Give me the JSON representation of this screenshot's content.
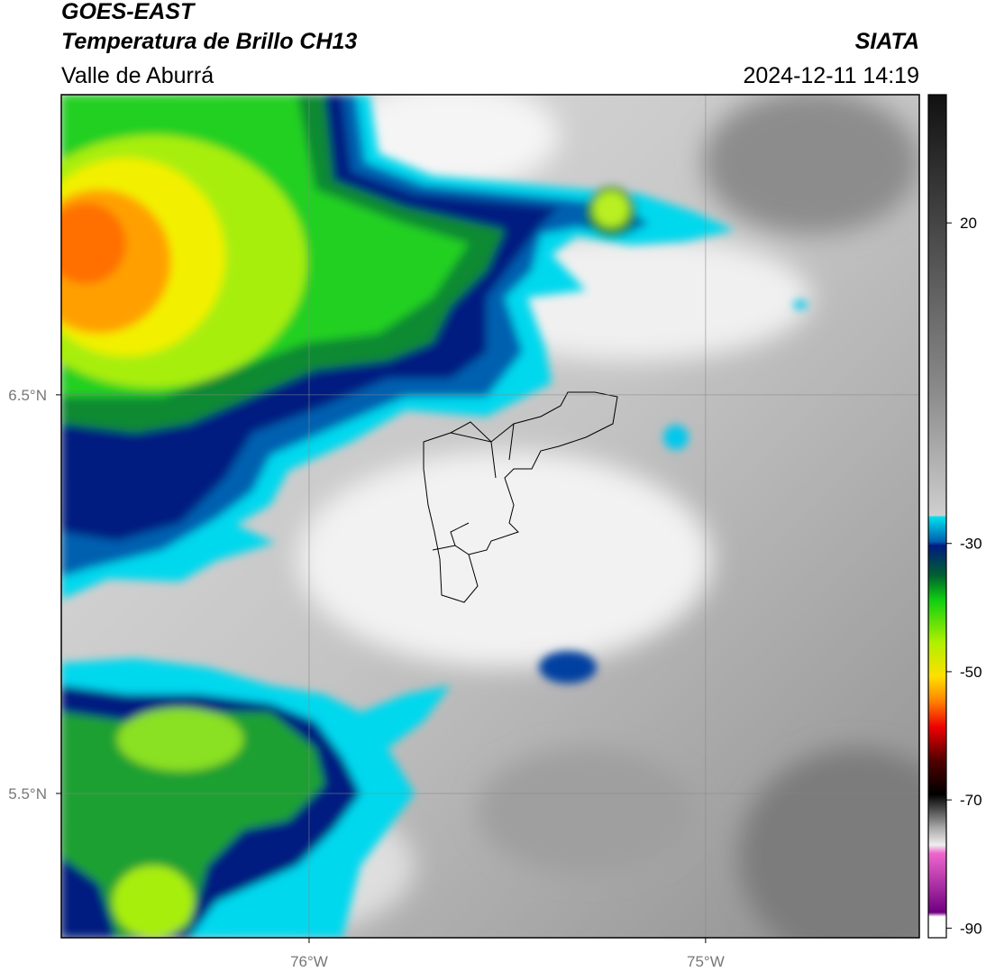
{
  "header": {
    "title": "GOES-EAST",
    "subtitle": "Temperatura de Brillo CH13",
    "region": "Valle de Aburrá",
    "source": "SIATA",
    "datetime": "2024-12-11 14:19"
  },
  "map": {
    "xlim": [
      -76.625,
      -74.461
    ],
    "ylim": [
      5.138,
      7.253
    ],
    "xticks": [
      {
        "value": -76,
        "label": "76°W"
      },
      {
        "value": -75,
        "label": "75°W"
      }
    ],
    "yticks": [
      {
        "value": 6.5,
        "label": "6.5°N"
      },
      {
        "value": 5.5,
        "label": "5.5°N"
      }
    ]
  },
  "colorbar": {
    "lim": [
      -91.5,
      40
    ],
    "ticks": [
      20,
      -30,
      -50,
      -70,
      -90
    ]
  }
}
